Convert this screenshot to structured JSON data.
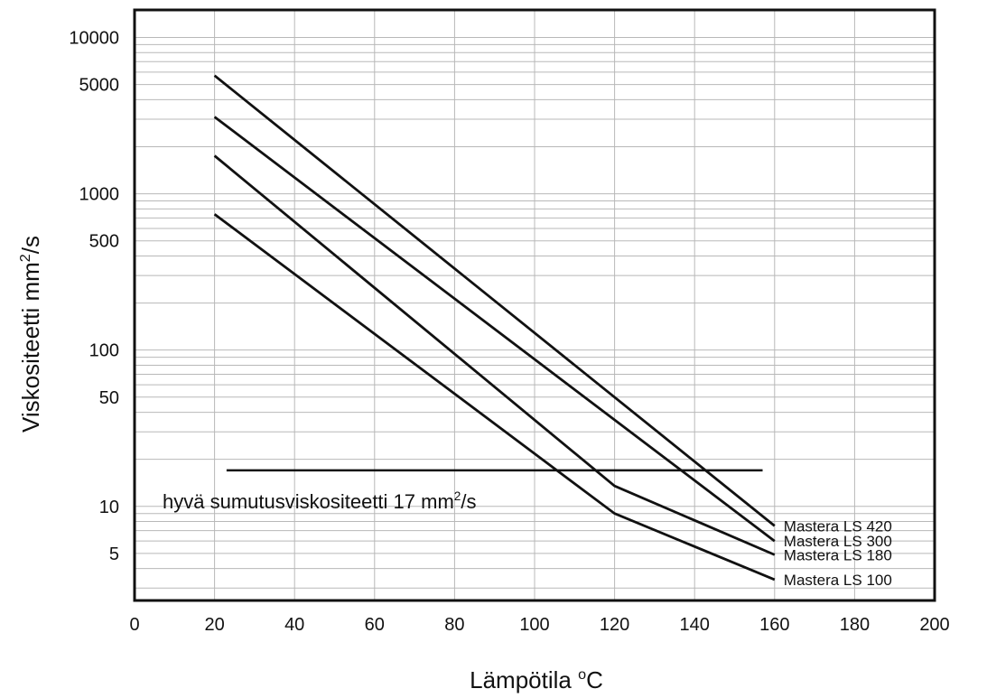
{
  "chart_data": {
    "type": "line",
    "title": "",
    "xlabel": {
      "main": "Lämpötila ",
      "sup": "o",
      "end": "C"
    },
    "ylabel": {
      "main": "Viskositeetti mm",
      "sup": "2",
      "end": "/s"
    },
    "x_scale": "linear",
    "y_scale": "log",
    "xlim": [
      0,
      200
    ],
    "ylim": [
      2.5,
      15000
    ],
    "x_ticks": [
      "0",
      "20",
      "40",
      "60",
      "80",
      "100",
      "120",
      "140",
      "160",
      "180",
      "200"
    ],
    "y_ticks": [
      {
        "value": 10000,
        "label": "10000"
      },
      {
        "value": 5000,
        "label": "5000"
      },
      {
        "value": 1000,
        "label": "1000"
      },
      {
        "value": 500,
        "label": "500"
      },
      {
        "value": 100,
        "label": "100"
      },
      {
        "value": 50,
        "label": "50"
      },
      {
        "value": 10,
        "label": "10"
      },
      {
        "value": 5,
        "label": "5"
      }
    ],
    "grid": true,
    "series": [
      {
        "name": "Mastera LS 420",
        "x": [
          20,
          160
        ],
        "y": [
          5700,
          7.5
        ]
      },
      {
        "name": "Mastera LS 300",
        "x": [
          20,
          160
        ],
        "y": [
          3100,
          6.0
        ]
      },
      {
        "name": "Mastera LS 180",
        "x": [
          20,
          120,
          160
        ],
        "y": [
          1750,
          13.5,
          4.9
        ]
      },
      {
        "name": "Mastera LS 100",
        "x": [
          20,
          120,
          160
        ],
        "y": [
          740,
          9.0,
          3.4
        ]
      }
    ],
    "reference_line": {
      "y": 17,
      "x": [
        23,
        157
      ],
      "label": {
        "main": "hyvä sumutusviskositeetti 17 mm",
        "sup": "2",
        "end": "/s"
      }
    }
  }
}
